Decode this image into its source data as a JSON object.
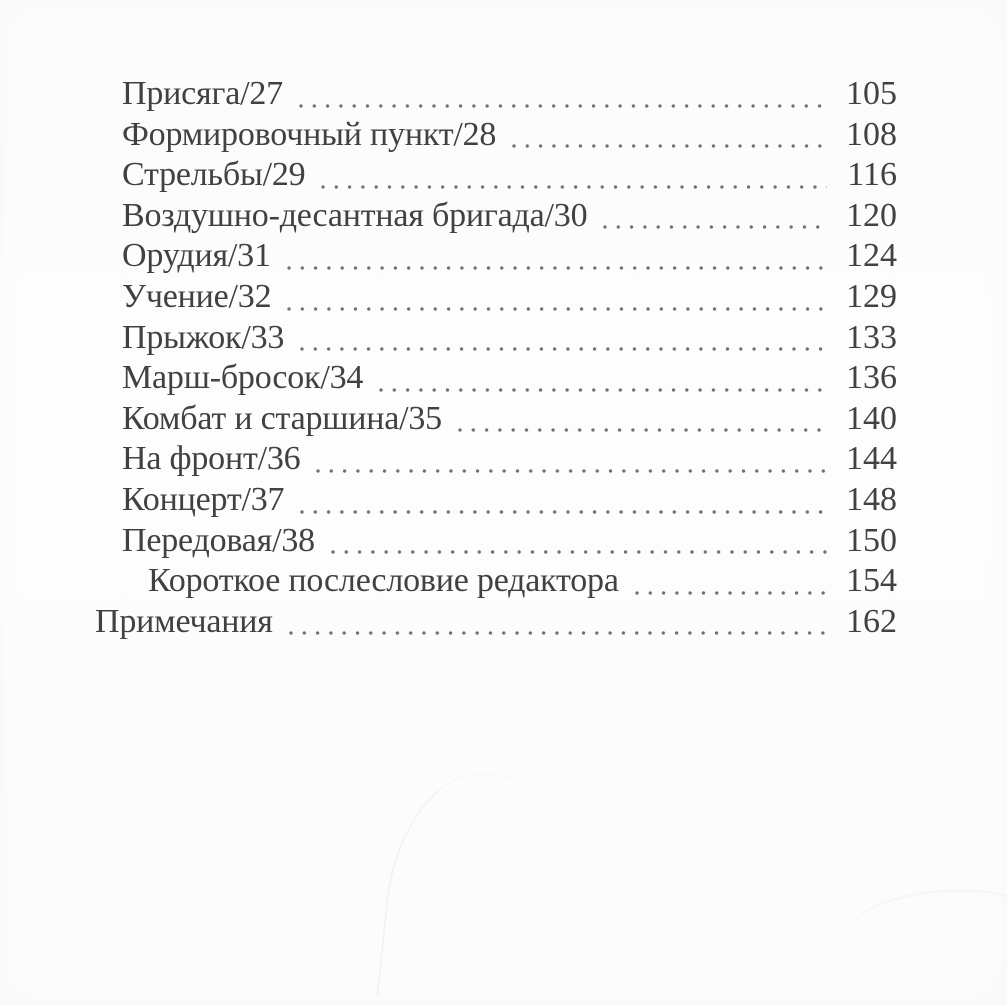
{
  "page": {
    "kind": "book-table-of-contents",
    "language": "ru",
    "text_color": "#414141",
    "leader_color": "#707070",
    "background_color": "#fdfdfd"
  },
  "toc": {
    "entries": [
      {
        "label": "Присяга/27",
        "page": "105",
        "indent": 1
      },
      {
        "label": "Формировочный пункт/28",
        "page": "108",
        "indent": 1
      },
      {
        "label": "Стрельбы/29",
        "page": "116",
        "indent": 1
      },
      {
        "label": "Воздушно-десантная бригада/30",
        "page": "120",
        "indent": 1
      },
      {
        "label": "Орудия/31",
        "page": "124",
        "indent": 1
      },
      {
        "label": "Учение/32",
        "page": "129",
        "indent": 1
      },
      {
        "label": "Прыжок/33",
        "page": "133",
        "indent": 1
      },
      {
        "label": "Марш-бросок/34",
        "page": "136",
        "indent": 1
      },
      {
        "label": "Комбат и старшина/35",
        "page": "140",
        "indent": 1
      },
      {
        "label": "На фронт/36",
        "page": "144",
        "indent": 1
      },
      {
        "label": "Концерт/37",
        "page": "148",
        "indent": 1
      },
      {
        "label": "Передовая/38",
        "page": "150",
        "indent": 1
      },
      {
        "label": "Короткое послесловие редактора",
        "page": "154",
        "indent": 2
      },
      {
        "label": "Примечания",
        "page": "162",
        "indent": 0
      }
    ]
  }
}
